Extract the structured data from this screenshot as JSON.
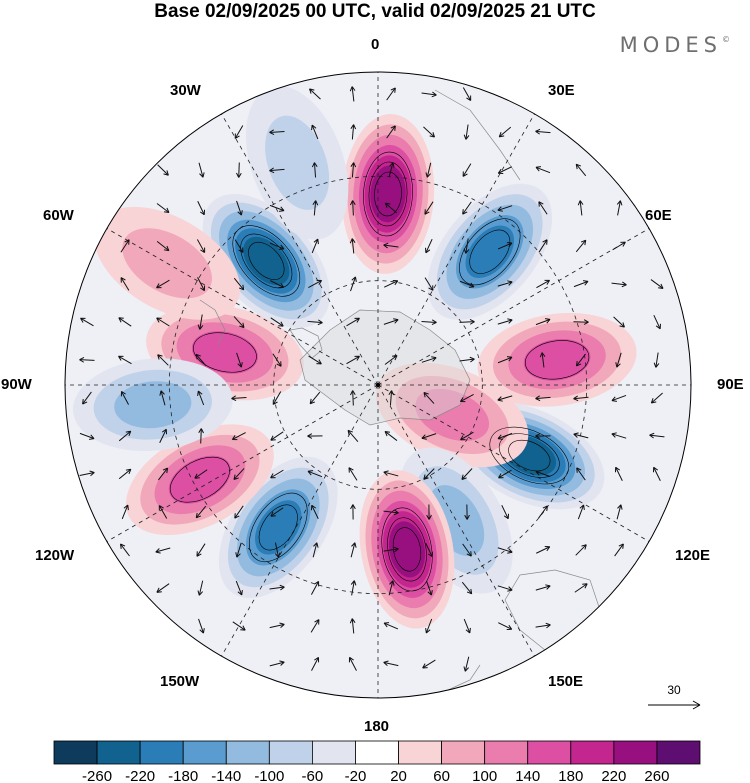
{
  "title": "Base 02/09/2025 00 UTC, valid 02/09/2025 21 UTC",
  "brand": {
    "name": "MODES",
    "mark": "©"
  },
  "longitude_labels": [
    {
      "key": "0",
      "text": "0"
    },
    {
      "key": "30E",
      "text": "30E"
    },
    {
      "key": "60E",
      "text": "60E"
    },
    {
      "key": "90E",
      "text": "90E"
    },
    {
      "key": "120E",
      "text": "120E"
    },
    {
      "key": "150E",
      "text": "150E"
    },
    {
      "key": "180",
      "text": "180"
    },
    {
      "key": "150W",
      "text": "150W"
    },
    {
      "key": "120W",
      "text": "120W"
    },
    {
      "key": "90W",
      "text": "90W"
    },
    {
      "key": "60W",
      "text": "60W"
    },
    {
      "key": "30W",
      "text": "30W"
    }
  ],
  "reference_vector": {
    "label": "30"
  },
  "colorbar": {
    "ticks": [
      "-260",
      "-220",
      "-180",
      "-140",
      "-100",
      "-60",
      "-20",
      "20",
      "60",
      "100",
      "140",
      "180",
      "220",
      "260"
    ],
    "colors": [
      "#0e3b5c",
      "#12628f",
      "#2b7db7",
      "#5a9ccf",
      "#93bbe0",
      "#bfd2ea",
      "#e2e4f0",
      "#ffffff",
      "#f9d4d6",
      "#f2a8bb",
      "#ea7cae",
      "#dc4fa3",
      "#c4268f",
      "#98107f",
      "#5e0d70"
    ]
  },
  "anomaly_centers": [
    {
      "id": "a1",
      "value": 230,
      "lon": 3,
      "lat": -35
    },
    {
      "id": "a2",
      "value": -200,
      "lon": 40,
      "lat": -40
    },
    {
      "id": "a3",
      "value": 150,
      "lon": 82,
      "lat": -38
    },
    {
      "id": "a4",
      "value": -230,
      "lon": 115,
      "lat": -42
    },
    {
      "id": "a5",
      "value": 110,
      "lon": 112,
      "lat": -67
    },
    {
      "id": "a6",
      "value": -120,
      "lon": 150,
      "lat": -45
    },
    {
      "id": "a7",
      "value": 220,
      "lon": 170,
      "lat": -42
    },
    {
      "id": "a8",
      "value": -200,
      "lon": -145,
      "lat": -40
    },
    {
      "id": "a9",
      "value": 150,
      "lon": -118,
      "lat": -32
    },
    {
      "id": "a10",
      "value": 160,
      "lon": -78,
      "lat": -45
    },
    {
      "id": "a11",
      "value": -230,
      "lon": -42,
      "lat": -42
    },
    {
      "id": "a12",
      "value": 90,
      "lon": -60,
      "lat": -20
    },
    {
      "id": "a13",
      "value": -100,
      "lon": -95,
      "lat": -25
    },
    {
      "id": "a14",
      "value": -90,
      "lon": -20,
      "lat": -22
    }
  ]
}
